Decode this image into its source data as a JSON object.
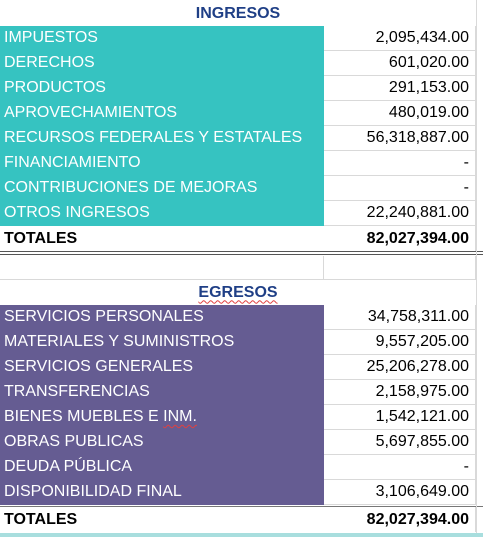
{
  "ingresos": {
    "title": "INGRESOS",
    "rows": [
      {
        "label": "IMPUESTOS",
        "value": "2,095,434.00"
      },
      {
        "label": "DERECHOS",
        "value": "601,020.00"
      },
      {
        "label": "PRODUCTOS",
        "value": "291,153.00"
      },
      {
        "label": "APROVECHAMIENTOS",
        "value": "480,019.00"
      },
      {
        "label": "RECURSOS FEDERALES Y ESTATALES",
        "value": "56,318,887.00"
      },
      {
        "label": "FINANCIAMIENTO",
        "value": "-"
      },
      {
        "label": "CONTRIBUCIONES DE MEJORAS",
        "value": "-"
      },
      {
        "label": "OTROS INGRESOS",
        "value": "22,240,881.00"
      }
    ],
    "total_label": "TOTALES",
    "total_value": "82,027,394.00",
    "color": "#36c3c1"
  },
  "egresos": {
    "title": "EGRESOS",
    "rows": [
      {
        "label": "SERVICIOS PERSONALES",
        "value": "34,758,311.00"
      },
      {
        "label": "MATERIALES Y SUMINISTROS",
        "value": "9,557,205.00"
      },
      {
        "label": "SERVICIOS GENERALES",
        "value": "25,206,278.00"
      },
      {
        "label": "TRANSFERENCIAS",
        "value": "2,158,975.00"
      },
      {
        "label_pre": "BIENES MUEBLES E ",
        "label_flag": "INM.",
        "value": "1,542,121.00"
      },
      {
        "label": "OBRAS PUBLICAS",
        "value": "5,697,855.00"
      },
      {
        "label": "DEUDA PÚBLICA",
        "value": "-"
      },
      {
        "label": "DISPONIBILIDAD FINAL",
        "value": "3,106,649.00"
      }
    ],
    "total_label": "TOTALES",
    "total_value": "82,027,394.00",
    "color": "#655c92"
  }
}
